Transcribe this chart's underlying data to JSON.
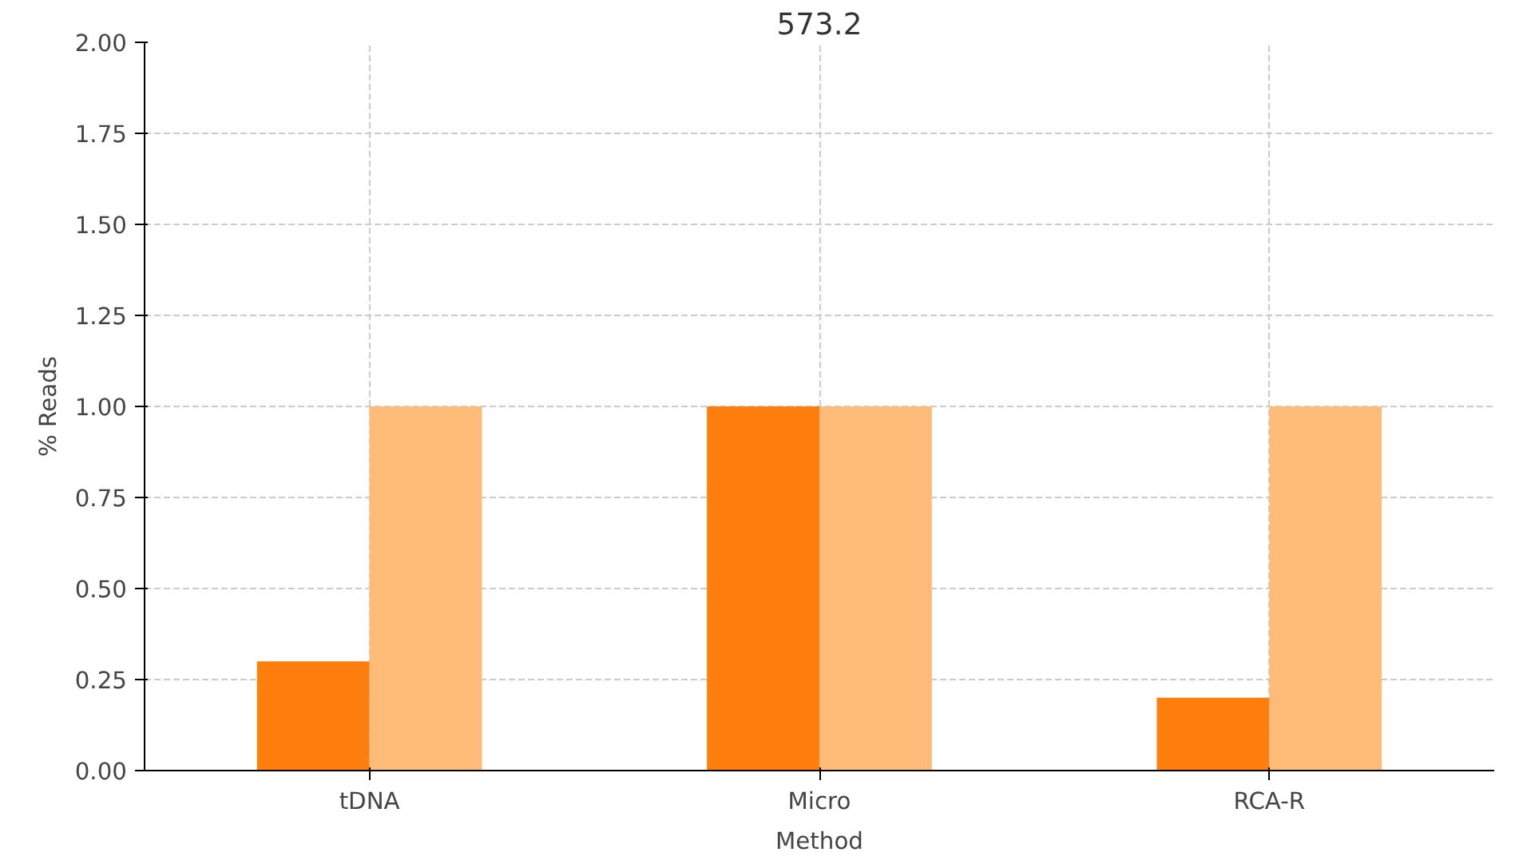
{
  "chart_data": {
    "type": "bar",
    "title": "573.2",
    "xlabel": "Method",
    "ylabel": "% Reads",
    "categories": [
      "tDNA",
      "Micro",
      "RCA-R"
    ],
    "series": [
      {
        "color": "#ff7f0e",
        "values": [
          0.3,
          1.0,
          0.2
        ]
      },
      {
        "color": "#ffbb78",
        "values": [
          1.0,
          1.0,
          1.0
        ]
      }
    ],
    "ylim": [
      0,
      2
    ],
    "yticks": [
      {
        "value": 0,
        "label": "0.00"
      },
      {
        "value": 0.25,
        "label": "0.25"
      },
      {
        "value": 0.5,
        "label": "0.50"
      },
      {
        "value": 0.75,
        "label": "0.75"
      },
      {
        "value": 1,
        "label": "1.00"
      },
      {
        "value": 1.25,
        "label": "1.25"
      },
      {
        "value": 1.5,
        "label": "1.50"
      },
      {
        "value": 1.75,
        "label": "1.75"
      },
      {
        "value": 2,
        "label": "2.00"
      }
    ],
    "grid": true
  }
}
